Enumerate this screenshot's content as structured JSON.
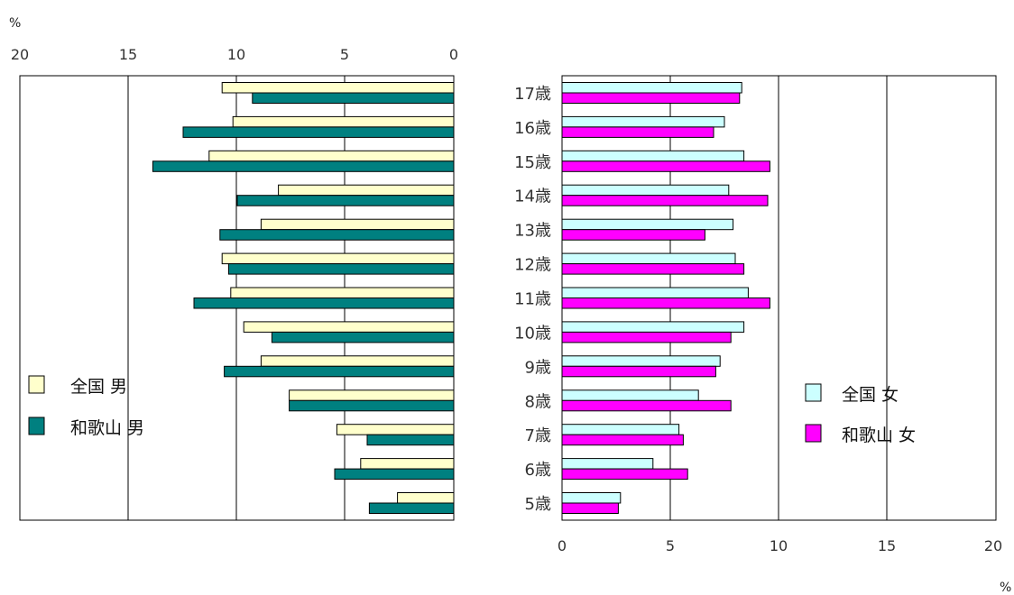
{
  "chart_data": {
    "type": "bar",
    "orientation": "horizontal-population-pyramid",
    "categories": [
      "5歳",
      "6歳",
      "7歳",
      "8歳",
      "9歳",
      "10歳",
      "11歳",
      "12歳",
      "13歳",
      "14歳",
      "15歳",
      "16歳",
      "17歳"
    ],
    "left_panel": {
      "unit": "%",
      "ticks": [
        "20",
        "15",
        "10",
        "5",
        "0"
      ],
      "xlim": [
        0,
        20
      ],
      "direction": "reversed",
      "series": [
        {
          "name": "全国 男",
          "color": "#FFFFCC",
          "values": [
            2.6,
            4.3,
            5.4,
            7.6,
            8.9,
            9.7,
            10.3,
            10.7,
            8.9,
            8.1,
            11.3,
            10.2,
            10.7
          ]
        },
        {
          "name": "和歌山 男",
          "color": "#008080",
          "values": [
            3.9,
            5.5,
            4.0,
            7.6,
            10.6,
            8.4,
            12.0,
            10.4,
            10.8,
            10.0,
            13.9,
            12.5,
            9.3
          ]
        }
      ],
      "legend_position": "bottom-left"
    },
    "right_panel": {
      "unit": "%",
      "ticks": [
        "0",
        "5",
        "10",
        "15",
        "20"
      ],
      "xlim": [
        0,
        20
      ],
      "series": [
        {
          "name": "全国 女",
          "color": "#CCFFFF",
          "values": [
            2.7,
            4.2,
            5.4,
            6.3,
            7.3,
            8.4,
            8.6,
            8.0,
            7.9,
            7.7,
            8.4,
            7.5,
            8.3
          ]
        },
        {
          "name": "和歌山 女",
          "color": "#FF00FF",
          "values": [
            2.6,
            5.8,
            5.6,
            7.8,
            7.1,
            7.8,
            9.6,
            8.4,
            6.6,
            9.5,
            9.6,
            7.0,
            8.2
          ]
        }
      ],
      "legend_position": "bottom-right"
    },
    "grid": true
  }
}
